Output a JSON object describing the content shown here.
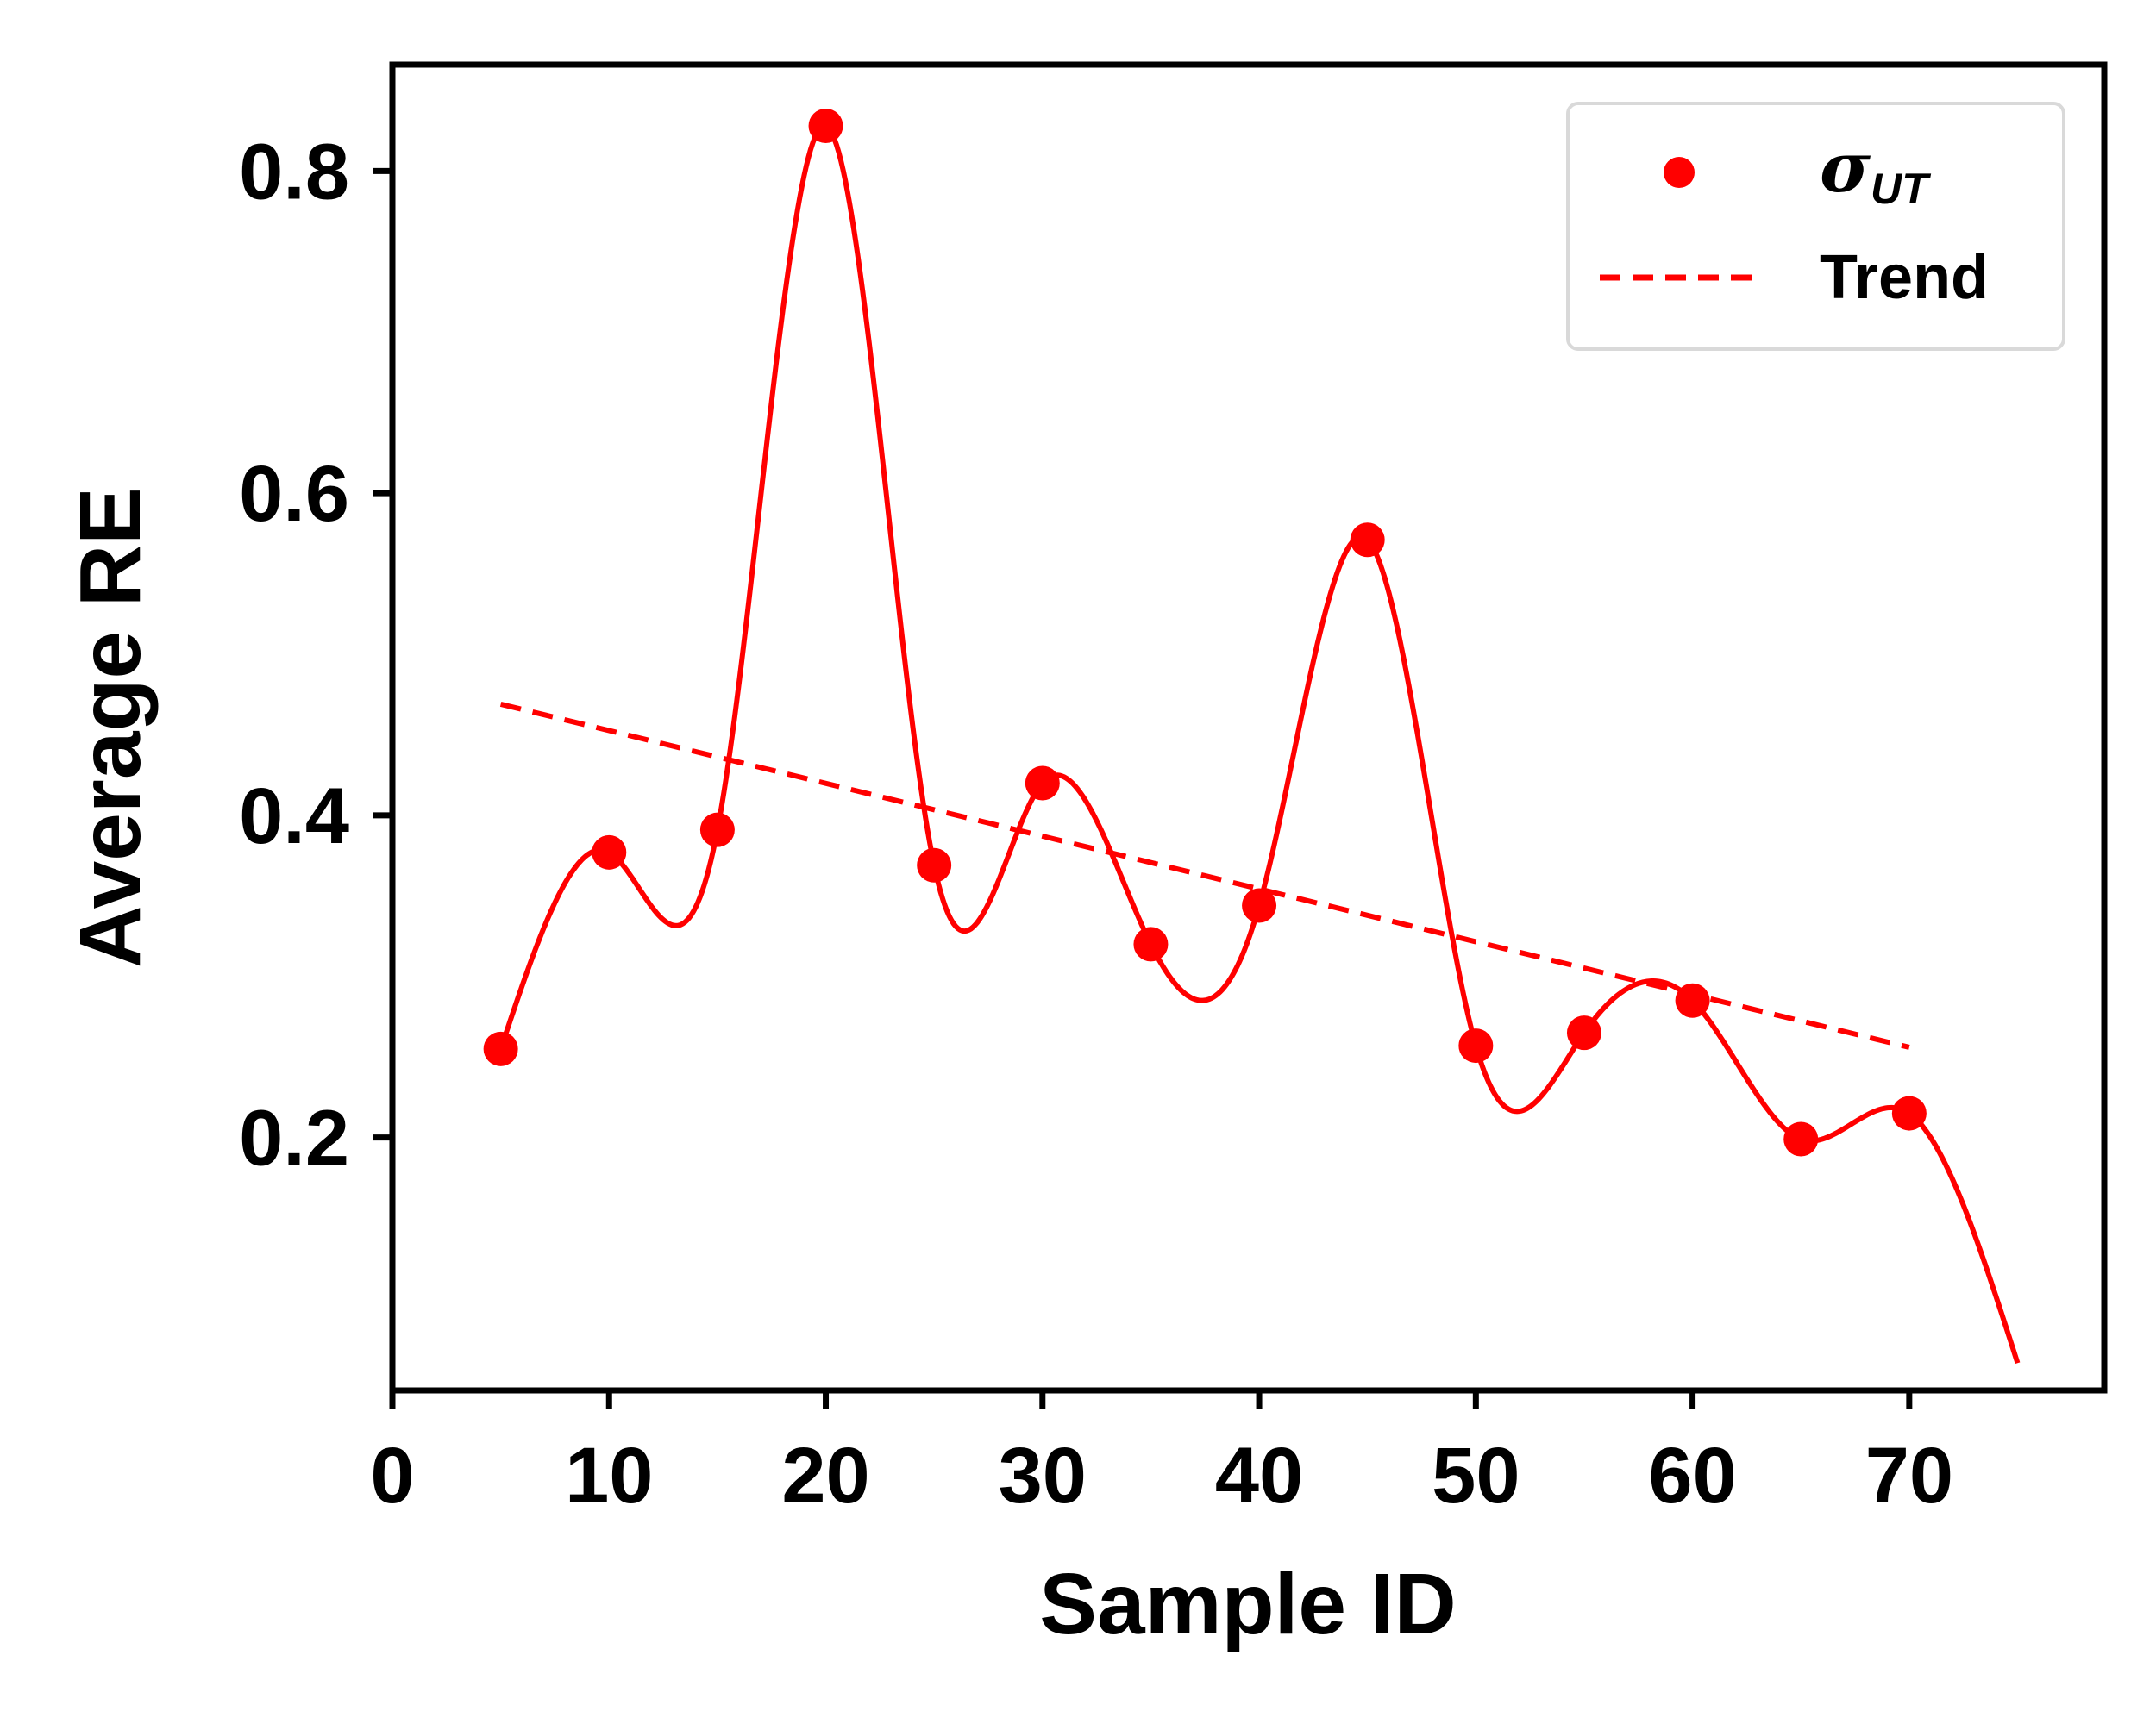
{
  "chart_data": {
    "type": "line",
    "xlabel": "Sample ID",
    "ylabel": "Average RE",
    "xlim": [
      0,
      79
    ],
    "ylim": [
      0.043,
      0.866
    ],
    "x_ticks": [
      0,
      10,
      20,
      30,
      40,
      50,
      60,
      70
    ],
    "y_ticks": [
      0.2,
      0.4,
      0.6,
      0.8
    ],
    "x_tick_labels": [
      "0",
      "10",
      "20",
      "30",
      "40",
      "50",
      "60",
      "70"
    ],
    "y_tick_labels": [
      "0.2",
      "0.4",
      "0.6",
      "0.8"
    ],
    "grid": false,
    "legend": {
      "position": "top-right"
    },
    "series": [
      {
        "name": "σUT",
        "legend_label": {
          "main": "σ",
          "sub": "UT"
        },
        "marker": "circle",
        "color": "#ff0000",
        "x": [
          5,
          10,
          15,
          20,
          25,
          30,
          35,
          40,
          45,
          50,
          55,
          60,
          65,
          70
        ],
        "y": [
          0.255,
          0.377,
          0.391,
          0.828,
          0.369,
          0.42,
          0.32,
          0.344,
          0.571,
          0.257,
          0.265,
          0.285,
          0.199,
          0.215
        ]
      },
      {
        "name": "Trend",
        "style": "dashed",
        "color": "#ff0000",
        "x": [
          5,
          70
        ],
        "y": [
          0.469,
          0.256
        ]
      }
    ],
    "smooth_curve": {
      "color": "#ff0000",
      "x_start": 5,
      "x_end": 75,
      "end_value": 0.06
    }
  }
}
